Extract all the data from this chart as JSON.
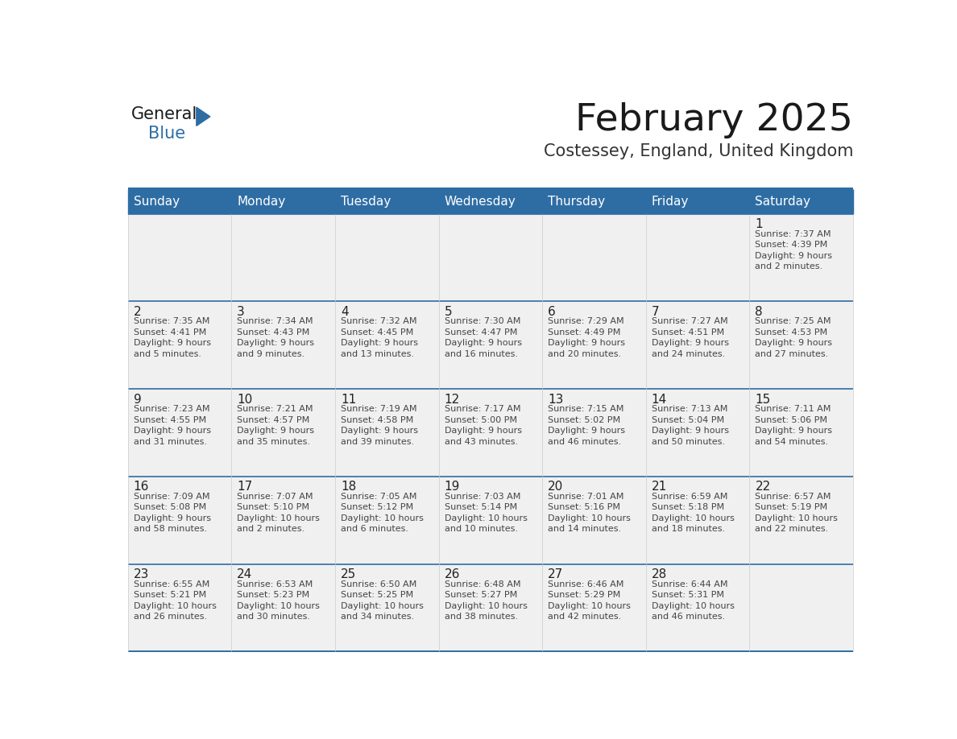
{
  "title": "February 2025",
  "subtitle": "Costessey, England, United Kingdom",
  "days_of_week": [
    "Sunday",
    "Monday",
    "Tuesday",
    "Wednesday",
    "Thursday",
    "Friday",
    "Saturday"
  ],
  "header_bg": "#2E6DA4",
  "header_text": "#FFFFFF",
  "cell_bg": "#F0F0F0",
  "row_separator_color": "#2E6DA4",
  "cell_border_color": "#CCCCCC",
  "day_number_color": "#222222",
  "info_text_color": "#444444",
  "title_color": "#1A1A1A",
  "subtitle_color": "#333333",
  "logo_general_color": "#1A1A1A",
  "logo_blue_color": "#2E6DA4",
  "separator_color": "#2E6DA4",
  "fig_width": 11.88,
  "fig_height": 9.18,
  "calendar_data": [
    [
      null,
      null,
      null,
      null,
      null,
      null,
      {
        "day": 1,
        "sunrise": "7:37 AM",
        "sunset": "4:39 PM",
        "daylight": "9 hours",
        "daylight2": "and 2 minutes."
      }
    ],
    [
      {
        "day": 2,
        "sunrise": "7:35 AM",
        "sunset": "4:41 PM",
        "daylight": "9 hours",
        "daylight2": "and 5 minutes."
      },
      {
        "day": 3,
        "sunrise": "7:34 AM",
        "sunset": "4:43 PM",
        "daylight": "9 hours",
        "daylight2": "and 9 minutes."
      },
      {
        "day": 4,
        "sunrise": "7:32 AM",
        "sunset": "4:45 PM",
        "daylight": "9 hours",
        "daylight2": "and 13 minutes."
      },
      {
        "day": 5,
        "sunrise": "7:30 AM",
        "sunset": "4:47 PM",
        "daylight": "9 hours",
        "daylight2": "and 16 minutes."
      },
      {
        "day": 6,
        "sunrise": "7:29 AM",
        "sunset": "4:49 PM",
        "daylight": "9 hours",
        "daylight2": "and 20 minutes."
      },
      {
        "day": 7,
        "sunrise": "7:27 AM",
        "sunset": "4:51 PM",
        "daylight": "9 hours",
        "daylight2": "and 24 minutes."
      },
      {
        "day": 8,
        "sunrise": "7:25 AM",
        "sunset": "4:53 PM",
        "daylight": "9 hours",
        "daylight2": "and 27 minutes."
      }
    ],
    [
      {
        "day": 9,
        "sunrise": "7:23 AM",
        "sunset": "4:55 PM",
        "daylight": "9 hours",
        "daylight2": "and 31 minutes."
      },
      {
        "day": 10,
        "sunrise": "7:21 AM",
        "sunset": "4:57 PM",
        "daylight": "9 hours",
        "daylight2": "and 35 minutes."
      },
      {
        "day": 11,
        "sunrise": "7:19 AM",
        "sunset": "4:58 PM",
        "daylight": "9 hours",
        "daylight2": "and 39 minutes."
      },
      {
        "day": 12,
        "sunrise": "7:17 AM",
        "sunset": "5:00 PM",
        "daylight": "9 hours",
        "daylight2": "and 43 minutes."
      },
      {
        "day": 13,
        "sunrise": "7:15 AM",
        "sunset": "5:02 PM",
        "daylight": "9 hours",
        "daylight2": "and 46 minutes."
      },
      {
        "day": 14,
        "sunrise": "7:13 AM",
        "sunset": "5:04 PM",
        "daylight": "9 hours",
        "daylight2": "and 50 minutes."
      },
      {
        "day": 15,
        "sunrise": "7:11 AM",
        "sunset": "5:06 PM",
        "daylight": "9 hours",
        "daylight2": "and 54 minutes."
      }
    ],
    [
      {
        "day": 16,
        "sunrise": "7:09 AM",
        "sunset": "5:08 PM",
        "daylight": "9 hours",
        "daylight2": "and 58 minutes."
      },
      {
        "day": 17,
        "sunrise": "7:07 AM",
        "sunset": "5:10 PM",
        "daylight": "10 hours",
        "daylight2": "and 2 minutes."
      },
      {
        "day": 18,
        "sunrise": "7:05 AM",
        "sunset": "5:12 PM",
        "daylight": "10 hours",
        "daylight2": "and 6 minutes."
      },
      {
        "day": 19,
        "sunrise": "7:03 AM",
        "sunset": "5:14 PM",
        "daylight": "10 hours",
        "daylight2": "and 10 minutes."
      },
      {
        "day": 20,
        "sunrise": "7:01 AM",
        "sunset": "5:16 PM",
        "daylight": "10 hours",
        "daylight2": "and 14 minutes."
      },
      {
        "day": 21,
        "sunrise": "6:59 AM",
        "sunset": "5:18 PM",
        "daylight": "10 hours",
        "daylight2": "and 18 minutes."
      },
      {
        "day": 22,
        "sunrise": "6:57 AM",
        "sunset": "5:19 PM",
        "daylight": "10 hours",
        "daylight2": "and 22 minutes."
      }
    ],
    [
      {
        "day": 23,
        "sunrise": "6:55 AM",
        "sunset": "5:21 PM",
        "daylight": "10 hours",
        "daylight2": "and 26 minutes."
      },
      {
        "day": 24,
        "sunrise": "6:53 AM",
        "sunset": "5:23 PM",
        "daylight": "10 hours",
        "daylight2": "and 30 minutes."
      },
      {
        "day": 25,
        "sunrise": "6:50 AM",
        "sunset": "5:25 PM",
        "daylight": "10 hours",
        "daylight2": "and 34 minutes."
      },
      {
        "day": 26,
        "sunrise": "6:48 AM",
        "sunset": "5:27 PM",
        "daylight": "10 hours",
        "daylight2": "and 38 minutes."
      },
      {
        "day": 27,
        "sunrise": "6:46 AM",
        "sunset": "5:29 PM",
        "daylight": "10 hours",
        "daylight2": "and 42 minutes."
      },
      {
        "day": 28,
        "sunrise": "6:44 AM",
        "sunset": "5:31 PM",
        "daylight": "10 hours",
        "daylight2": "and 46 minutes."
      },
      null
    ]
  ]
}
